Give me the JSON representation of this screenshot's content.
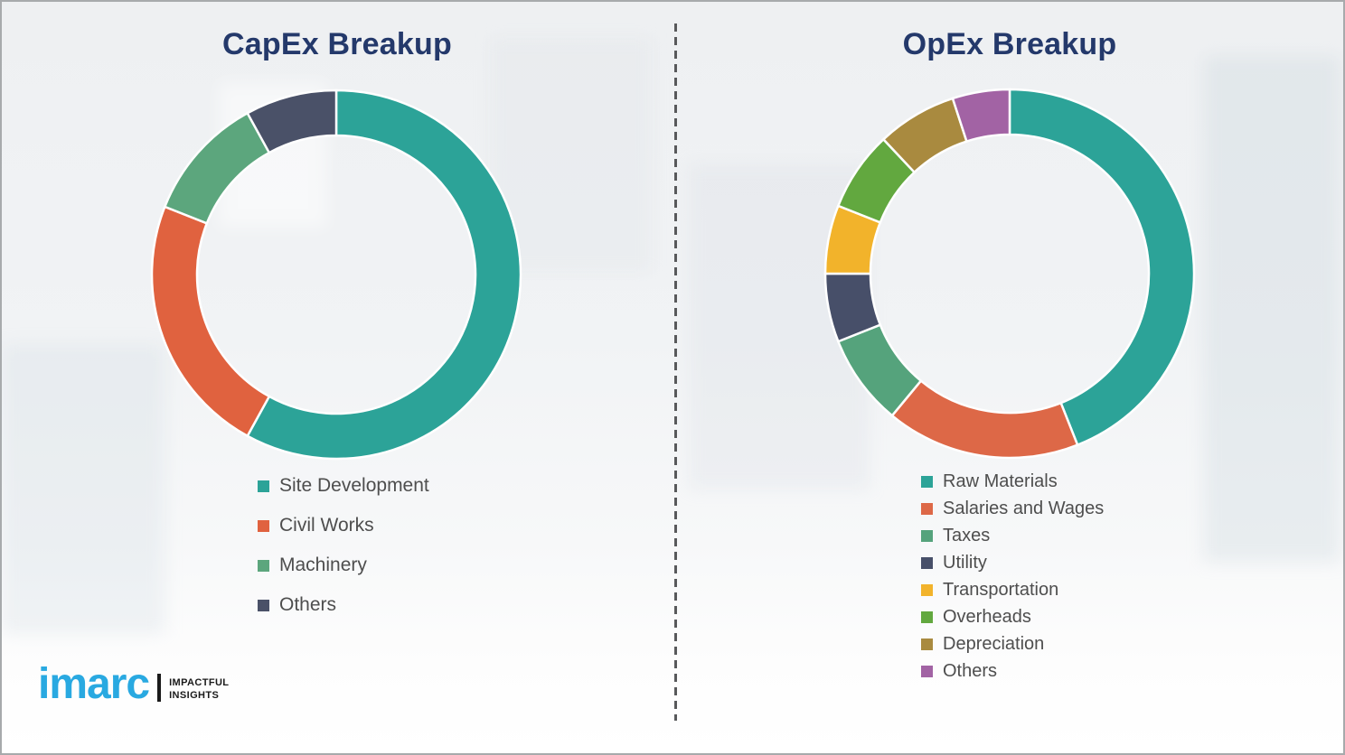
{
  "chart_data": [
    {
      "type": "pie",
      "subtype": "donut",
      "title": "CapEx Breakup",
      "units": "percent (estimated from arc angles, no data labels shown)",
      "start_angle_deg": 0,
      "direction": "clockwise",
      "legend_position": "below-left",
      "segments": [
        {
          "label": "Site Development",
          "value": 58,
          "color": "#2CA398"
        },
        {
          "label": "Civil Works",
          "value": 23,
          "color": "#E0623F"
        },
        {
          "label": "Machinery",
          "value": 11,
          "color": "#5CA67D"
        },
        {
          "label": "Others",
          "value": 8,
          "color": "#4A5168"
        }
      ]
    },
    {
      "type": "pie",
      "subtype": "donut",
      "title": "OpEx Breakup",
      "units": "percent (estimated from arc angles, no data labels shown)",
      "start_angle_deg": 0,
      "direction": "clockwise",
      "legend_position": "below-left",
      "segments": [
        {
          "label": "Raw Materials",
          "value": 44,
          "color": "#2CA398"
        },
        {
          "label": "Salaries and Wages",
          "value": 17,
          "color": "#DD6847"
        },
        {
          "label": "Taxes",
          "value": 8,
          "color": "#55A37C"
        },
        {
          "label": "Utility",
          "value": 6,
          "color": "#474F69"
        },
        {
          "label": "Transportation",
          "value": 6,
          "color": "#F2B32B"
        },
        {
          "label": "Overheads",
          "value": 7,
          "color": "#62A83F"
        },
        {
          "label": "Depreciation",
          "value": 7,
          "color": "#A98A3F"
        },
        {
          "label": "Others",
          "value": 5,
          "color": "#A263A4"
        }
      ]
    }
  ],
  "logo": {
    "wordmark": "imarc",
    "tagline_line1": "IMPACTFUL",
    "tagline_line2": "INSIGHTS"
  },
  "colors": {
    "title_text": "#24396B",
    "legend_text": "#4E4E4E",
    "divider": "#58595B",
    "logo_blue": "#29A9E1",
    "logo_black": "#1A1A1A"
  }
}
